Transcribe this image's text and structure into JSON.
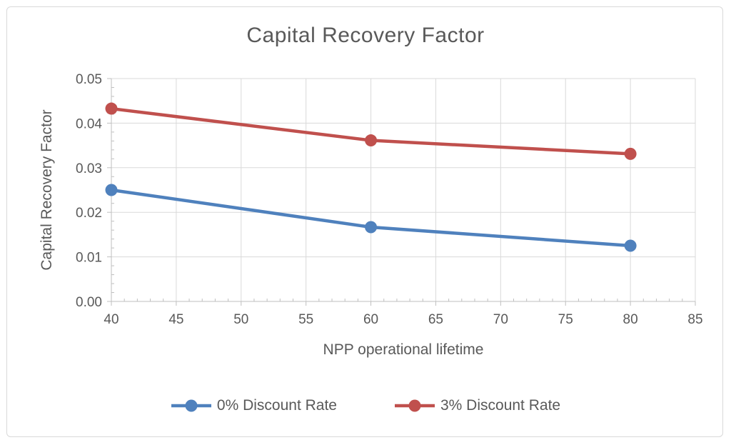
{
  "chart_data": {
    "type": "line",
    "title": "Capital Recovery Factor",
    "xlabel": "NPP operational lifetime",
    "ylabel": "Capital Recovery Factor",
    "xlim": [
      40,
      85
    ],
    "ylim": [
      0,
      0.05
    ],
    "x_major_ticks": [
      40,
      45,
      50,
      55,
      60,
      65,
      70,
      75,
      80,
      85
    ],
    "x_tick_labels": [
      "40",
      "45",
      "50",
      "55",
      "60",
      "65",
      "70",
      "75",
      "80",
      "85"
    ],
    "x_minor_step": 1,
    "y_major_ticks": [
      0,
      0.01,
      0.02,
      0.03,
      0.04,
      0.05
    ],
    "y_tick_labels": [
      "0.00",
      "0.01",
      "0.02",
      "0.03",
      "0.04",
      "0.05"
    ],
    "y_minor_step": 0.002,
    "grid": true,
    "legend_position": "bottom",
    "x": [
      40,
      60,
      80
    ],
    "series": [
      {
        "name": "0% Discount Rate",
        "color": "#4F81BD",
        "values": [
          0.025,
          0.01667,
          0.0125
        ]
      },
      {
        "name": "3% Discount Rate",
        "color": "#C0504D",
        "values": [
          0.04326,
          0.03613,
          0.03311
        ]
      }
    ]
  },
  "colors": {
    "text": "#595959",
    "gridline": "#D9D9D9",
    "axis_line": "#BFBFBF",
    "border": "#D9D9D9",
    "background": "#FFFFFF"
  }
}
